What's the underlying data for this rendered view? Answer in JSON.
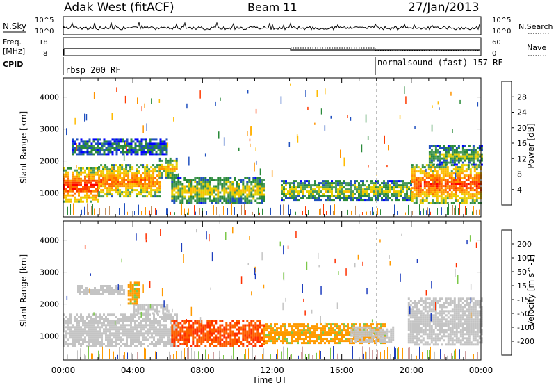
{
  "header": {
    "station": "Adak West (fitACF)",
    "beam": "Beam 11",
    "date": "27/Jan/2013"
  },
  "top_panels": {
    "nsky": {
      "label": "N.Sky",
      "ticks": [
        "10^5",
        "10^0"
      ],
      "right_label": "N.Search",
      "right_ticks": [
        "10^5",
        "10^0"
      ]
    },
    "freq": {
      "label_lines": [
        "Freq.",
        "[MHz]"
      ],
      "ticks": [
        "18",
        "8"
      ],
      "right_label": "Nave",
      "right_ticks": [
        "60",
        "0"
      ]
    },
    "cpid": {
      "label": "CPID",
      "segments": [
        {
          "label": "rbsp 200 RF",
          "start_h": 0,
          "end_h": 18
        },
        {
          "label": "normalsound (fast) 157 RF",
          "start_h": 18,
          "end_h": 24
        }
      ]
    }
  },
  "chart_data": [
    {
      "type": "heatmap",
      "name": "power",
      "title": "",
      "xlabel": "Time UT",
      "ylabel": "Slant Range [km]",
      "xlim_hours": [
        0,
        24
      ],
      "ylim_km": [
        250,
        4600
      ],
      "x_tick_labels": [
        "00:00",
        "04:00",
        "08:00",
        "12:00",
        "16:00",
        "20:00",
        "00:00"
      ],
      "x_tick_hours": [
        0,
        4,
        8,
        12,
        16,
        20,
        24
      ],
      "y_ticks": [
        1000,
        2000,
        3000,
        4000
      ],
      "colorbar": {
        "label": "Power [dB]",
        "ticks": [
          "28",
          "24",
          "20",
          "16",
          "12",
          "8",
          "4"
        ],
        "colors": [
          "#ff0000",
          "#ff3a00",
          "#ff6a00",
          "#ff9300",
          "#ffbb00",
          "#e6d000",
          "#4a9a5a",
          "#2a8a3a",
          "#1f4fbf",
          "#0000ff"
        ]
      },
      "echo_regions": [
        {
          "t0": 0.0,
          "t1": 2.0,
          "r0": 700,
          "r1": 1800,
          "level": 0.9
        },
        {
          "t0": 2.0,
          "t1": 5.5,
          "r0": 900,
          "r1": 1900,
          "level": 0.75
        },
        {
          "t0": 5.5,
          "t1": 6.5,
          "r0": 1500,
          "r1": 2100,
          "level": 0.6
        },
        {
          "t0": 0.5,
          "t1": 6.0,
          "r0": 2200,
          "r1": 2700,
          "level": 0.25
        },
        {
          "t0": 6.2,
          "t1": 11.5,
          "r0": 700,
          "r1": 1500,
          "level": 0.5
        },
        {
          "t0": 12.5,
          "t1": 20.0,
          "r0": 800,
          "r1": 1400,
          "level": 0.45
        },
        {
          "t0": 20.0,
          "t1": 24.0,
          "r0": 700,
          "r1": 1900,
          "level": 0.85
        },
        {
          "t0": 21.0,
          "t1": 24.0,
          "r0": 1900,
          "r1": 2500,
          "level": 0.4
        }
      ]
    },
    {
      "type": "heatmap",
      "name": "velocity",
      "title": "",
      "xlabel": "Time UT",
      "ylabel": "Slant Range [km]",
      "xlim_hours": [
        0,
        24
      ],
      "ylim_km": [
        250,
        4600
      ],
      "x_tick_labels": [
        "00:00",
        "04:00",
        "08:00",
        "12:00",
        "16:00",
        "20:00",
        "00:00"
      ],
      "x_tick_hours": [
        0,
        4,
        8,
        12,
        16,
        20,
        24
      ],
      "y_ticks": [
        1000,
        2000,
        3000,
        4000
      ],
      "colorbar": {
        "label": "Velocity [m s^-1]",
        "ticks": [
          "200",
          "100",
          "50",
          "15",
          "-15",
          "-50",
          "-100",
          "-200"
        ],
        "colors": [
          "#1f3fbf",
          "#3a7abf",
          "#5ab85a",
          "#8ed44a",
          "#c8c8c8",
          "#ffb000",
          "#ff8000",
          "#ff4000",
          "#ff0000"
        ]
      },
      "echo_regions": [
        {
          "t0": 0.0,
          "t1": 6.5,
          "r0": 700,
          "r1": 1700,
          "vel": "grey"
        },
        {
          "t0": 4.0,
          "t1": 6.0,
          "r0": 1700,
          "r1": 2000,
          "vel": "grey"
        },
        {
          "t0": 0.8,
          "t1": 3.5,
          "r0": 2300,
          "r1": 2600,
          "vel": "grey"
        },
        {
          "t0": 3.7,
          "t1": 4.3,
          "r0": 2000,
          "r1": 2700,
          "vel": "-50"
        },
        {
          "t0": 6.2,
          "t1": 11.5,
          "r0": 700,
          "r1": 1500,
          "vel": "-100"
        },
        {
          "t0": 11.5,
          "t1": 18.5,
          "r0": 800,
          "r1": 1400,
          "vel": "-50"
        },
        {
          "t0": 16.5,
          "t1": 19.0,
          "r0": 800,
          "r1": 1300,
          "vel": "grey"
        },
        {
          "t0": 19.8,
          "t1": 24.0,
          "r0": 700,
          "r1": 2200,
          "vel": "grey"
        }
      ]
    }
  ]
}
